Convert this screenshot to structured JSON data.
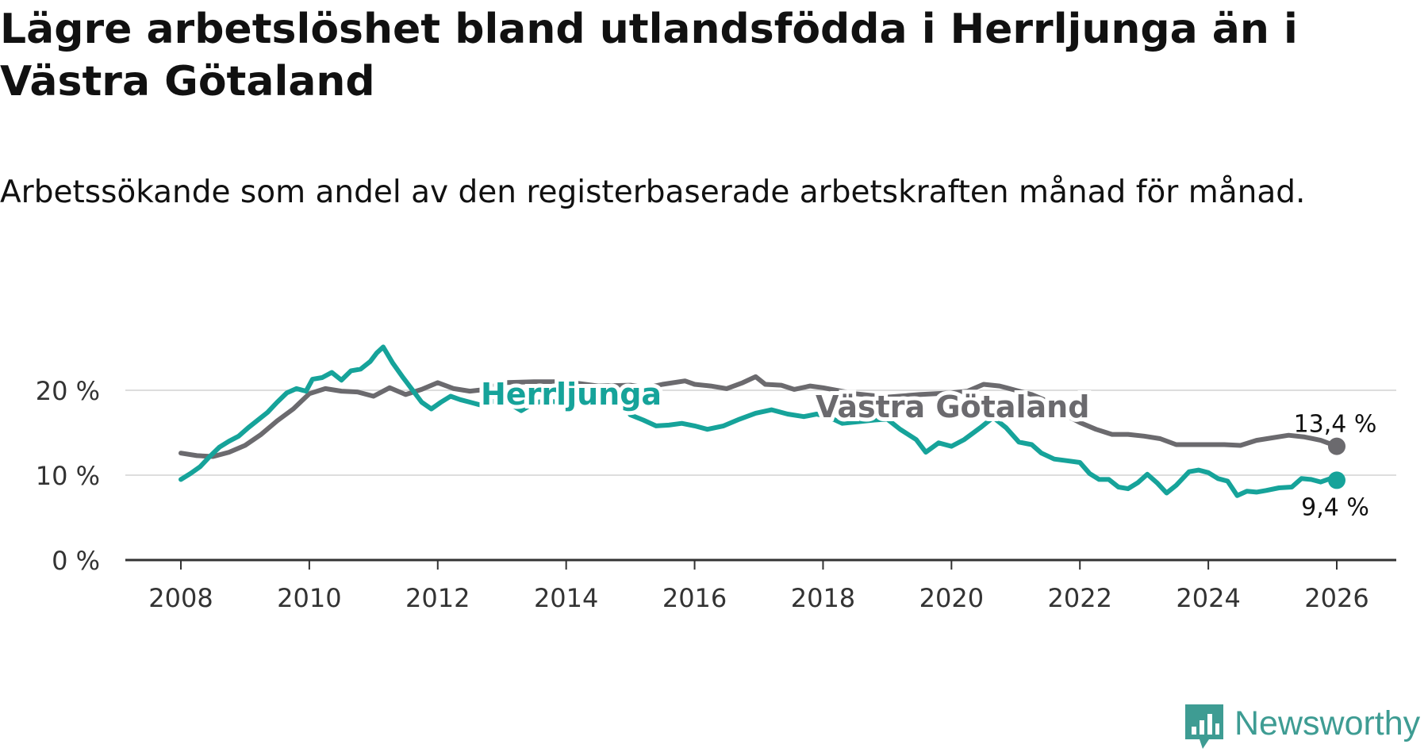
{
  "chart_data": {
    "type": "line",
    "title": "Lägre arbetslöshet bland utlandsfödda i Herrljunga än i Västra Götaland",
    "subtitle": "Arbetssökande som andel av den registerbaserade arbetskraften månad för månad.",
    "xlabel": "",
    "ylabel": "",
    "xlim": [
      2008,
      2026
    ],
    "ylim": [
      0,
      20
    ],
    "grid": true,
    "x_ticks": [
      {
        "value": 2008,
        "label": "2008"
      },
      {
        "value": 2010,
        "label": "2010"
      },
      {
        "value": 2012,
        "label": "2012"
      },
      {
        "value": 2014,
        "label": "2014"
      },
      {
        "value": 2016,
        "label": "2016"
      },
      {
        "value": 2018,
        "label": "2018"
      },
      {
        "value": 2020,
        "label": "2020"
      },
      {
        "value": 2022,
        "label": "2022"
      },
      {
        "value": 2024,
        "label": "2024"
      },
      {
        "value": 2026,
        "label": "2026"
      }
    ],
    "y_ticks": [
      {
        "value": 0,
        "label": "0 %"
      },
      {
        "value": 10,
        "label": "10 %"
      },
      {
        "value": 20,
        "label": "20 %"
      }
    ],
    "series": [
      {
        "name": "Västra Götaland",
        "color": "#6b6a6e",
        "end_label": "13,4 %",
        "points": [
          [
            2008.0,
            12.6
          ],
          [
            2008.25,
            12.3
          ],
          [
            2008.5,
            12.2
          ],
          [
            2008.75,
            12.7
          ],
          [
            2009.0,
            13.5
          ],
          [
            2009.25,
            14.8
          ],
          [
            2009.5,
            16.4
          ],
          [
            2009.75,
            17.8
          ],
          [
            2010.0,
            19.6
          ],
          [
            2010.25,
            20.2
          ],
          [
            2010.5,
            19.9
          ],
          [
            2010.75,
            19.8
          ],
          [
            2011.0,
            19.3
          ],
          [
            2011.25,
            20.3
          ],
          [
            2011.5,
            19.5
          ],
          [
            2011.75,
            20.1
          ],
          [
            2012.0,
            20.9
          ],
          [
            2012.25,
            20.2
          ],
          [
            2012.5,
            19.9
          ],
          [
            2012.75,
            20.1
          ],
          [
            2013.0,
            20.9
          ],
          [
            2013.5,
            21.0
          ],
          [
            2014.0,
            21.0
          ],
          [
            2014.5,
            20.5
          ],
          [
            2015.0,
            20.6
          ],
          [
            2015.25,
            20.3
          ],
          [
            2015.5,
            20.7
          ],
          [
            2015.85,
            21.1
          ],
          [
            2016.0,
            20.7
          ],
          [
            2016.25,
            20.5
          ],
          [
            2016.5,
            20.2
          ],
          [
            2016.75,
            20.9
          ],
          [
            2016.95,
            21.6
          ],
          [
            2017.1,
            20.7
          ],
          [
            2017.35,
            20.6
          ],
          [
            2017.55,
            20.1
          ],
          [
            2017.8,
            20.5
          ],
          [
            2018.0,
            20.3
          ],
          [
            2018.5,
            19.6
          ],
          [
            2019.0,
            19.2
          ],
          [
            2019.5,
            19.5
          ],
          [
            2020.0,
            19.7
          ],
          [
            2020.25,
            19.9
          ],
          [
            2020.5,
            20.7
          ],
          [
            2020.75,
            20.5
          ],
          [
            2021.0,
            20.0
          ],
          [
            2021.25,
            19.5
          ],
          [
            2021.5,
            18.7
          ],
          [
            2021.75,
            17.2
          ],
          [
            2022.0,
            16.2
          ],
          [
            2022.25,
            15.4
          ],
          [
            2022.5,
            14.8
          ],
          [
            2022.75,
            14.8
          ],
          [
            2023.0,
            14.6
          ],
          [
            2023.25,
            14.3
          ],
          [
            2023.5,
            13.6
          ],
          [
            2023.75,
            13.6
          ],
          [
            2024.0,
            13.6
          ],
          [
            2024.25,
            13.6
          ],
          [
            2024.5,
            13.5
          ],
          [
            2024.75,
            14.1
          ],
          [
            2025.0,
            14.4
          ],
          [
            2025.25,
            14.7
          ],
          [
            2025.5,
            14.5
          ],
          [
            2025.75,
            14.1
          ],
          [
            2026.0,
            13.4
          ]
        ]
      },
      {
        "name": "Herrljunga",
        "color": "#16a39a",
        "end_label": "9,4 %",
        "points": [
          [
            2008.0,
            9.5
          ],
          [
            2008.15,
            10.2
          ],
          [
            2008.3,
            11.0
          ],
          [
            2008.45,
            12.2
          ],
          [
            2008.6,
            13.3
          ],
          [
            2008.75,
            14.0
          ],
          [
            2008.9,
            14.6
          ],
          [
            2009.05,
            15.6
          ],
          [
            2009.2,
            16.5
          ],
          [
            2009.35,
            17.4
          ],
          [
            2009.5,
            18.6
          ],
          [
            2009.65,
            19.7
          ],
          [
            2009.8,
            20.2
          ],
          [
            2009.95,
            19.9
          ],
          [
            2010.05,
            21.3
          ],
          [
            2010.2,
            21.5
          ],
          [
            2010.35,
            22.1
          ],
          [
            2010.5,
            21.2
          ],
          [
            2010.65,
            22.3
          ],
          [
            2010.8,
            22.5
          ],
          [
            2010.95,
            23.4
          ],
          [
            2011.05,
            24.4
          ],
          [
            2011.15,
            25.1
          ],
          [
            2011.3,
            23.2
          ],
          [
            2011.45,
            21.6
          ],
          [
            2011.6,
            20.1
          ],
          [
            2011.75,
            18.6
          ],
          [
            2011.9,
            17.8
          ],
          [
            2012.05,
            18.6
          ],
          [
            2012.2,
            19.3
          ],
          [
            2012.35,
            18.9
          ],
          [
            2012.5,
            18.6
          ],
          [
            2012.7,
            18.2
          ],
          [
            2012.9,
            18.8
          ],
          [
            2013.1,
            18.5
          ],
          [
            2013.3,
            17.6
          ],
          [
            2013.5,
            18.5
          ],
          [
            2013.7,
            18.8
          ],
          [
            2014.0,
            18.4
          ],
          [
            2014.3,
            18.9
          ],
          [
            2014.6,
            19.2
          ],
          [
            2014.9,
            18.3
          ],
          [
            2015.0,
            17.1
          ],
          [
            2015.2,
            16.5
          ],
          [
            2015.4,
            15.8
          ],
          [
            2015.6,
            15.9
          ],
          [
            2015.8,
            16.1
          ],
          [
            2016.0,
            15.8
          ],
          [
            2016.2,
            15.4
          ],
          [
            2016.45,
            15.8
          ],
          [
            2016.7,
            16.6
          ],
          [
            2016.95,
            17.3
          ],
          [
            2017.2,
            17.7
          ],
          [
            2017.45,
            17.2
          ],
          [
            2017.7,
            16.9
          ],
          [
            2017.9,
            17.2
          ],
          [
            2018.1,
            16.8
          ],
          [
            2018.3,
            16.1
          ],
          [
            2018.55,
            16.3
          ],
          [
            2018.8,
            16.5
          ],
          [
            2019.0,
            16.6
          ],
          [
            2019.2,
            15.4
          ],
          [
            2019.45,
            14.2
          ],
          [
            2019.6,
            12.7
          ],
          [
            2019.8,
            13.8
          ],
          [
            2020.0,
            13.4
          ],
          [
            2020.2,
            14.2
          ],
          [
            2020.45,
            15.6
          ],
          [
            2020.65,
            16.8
          ],
          [
            2020.85,
            15.6
          ],
          [
            2021.05,
            13.9
          ],
          [
            2021.25,
            13.6
          ],
          [
            2021.4,
            12.6
          ],
          [
            2021.6,
            11.9
          ],
          [
            2021.8,
            11.7
          ],
          [
            2022.0,
            11.5
          ],
          [
            2022.15,
            10.2
          ],
          [
            2022.3,
            9.5
          ],
          [
            2022.45,
            9.5
          ],
          [
            2022.6,
            8.6
          ],
          [
            2022.75,
            8.4
          ],
          [
            2022.9,
            9.1
          ],
          [
            2023.05,
            10.1
          ],
          [
            2023.2,
            9.1
          ],
          [
            2023.35,
            7.9
          ],
          [
            2023.5,
            8.8
          ],
          [
            2023.7,
            10.4
          ],
          [
            2023.85,
            10.6
          ],
          [
            2024.0,
            10.3
          ],
          [
            2024.15,
            9.6
          ],
          [
            2024.3,
            9.3
          ],
          [
            2024.45,
            7.6
          ],
          [
            2024.6,
            8.1
          ],
          [
            2024.75,
            8.0
          ],
          [
            2024.9,
            8.2
          ],
          [
            2025.1,
            8.5
          ],
          [
            2025.3,
            8.6
          ],
          [
            2025.45,
            9.6
          ],
          [
            2025.6,
            9.5
          ],
          [
            2025.75,
            9.2
          ],
          [
            2025.9,
            9.6
          ],
          [
            2026.0,
            9.4
          ]
        ]
      }
    ]
  },
  "annotations": {
    "herrljunga_label": "Herrljunga",
    "vg_label": "Västra Götaland"
  },
  "logo": {
    "text": "Newsworthy",
    "icon": "bar-chart-speech-icon",
    "color": "#3e9c93"
  }
}
